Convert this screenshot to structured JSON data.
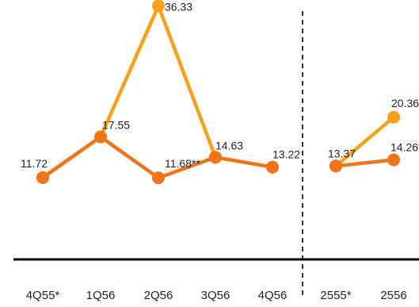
{
  "chart_data": {
    "type": "line",
    "categories": [
      "4Q55*",
      "1Q56",
      "2Q56",
      "3Q56",
      "4Q56",
      "2555*",
      "2556"
    ],
    "groups": [
      {
        "categories": [
          "4Q55*",
          "1Q56",
          "2Q56",
          "3Q56",
          "4Q56"
        ],
        "series": [
          {
            "key": "a",
            "values": [
              11.72,
              17.55,
              36.33,
              14.63,
              13.22
            ],
            "labels": [
              "11.72",
              "17.55",
              "36.33",
              "14.63",
              "13.22"
            ],
            "color": "#f7a11a"
          },
          {
            "key": "b",
            "values": [
              11.72,
              17.55,
              11.68,
              14.63,
              13.22
            ],
            "labels": [
              null,
              null,
              "11.68**",
              null,
              null
            ],
            "color": "#f07419"
          }
        ]
      },
      {
        "categories": [
          "2555*",
          "2556"
        ],
        "series": [
          {
            "key": "a",
            "values": [
              13.37,
              20.36
            ],
            "labels": [
              null,
              "20.36"
            ],
            "color": "#f7a11a"
          },
          {
            "key": "b",
            "values": [
              13.37,
              14.26
            ],
            "labels": [
              "13.37",
              "14.26**"
            ],
            "color": "#f07419"
          }
        ]
      }
    ],
    "ylim": [
      0,
      38
    ],
    "grid": false,
    "separator": "dashed vertical line between 4Q56 and 2555*",
    "title": "",
    "xlabel": "",
    "ylabel": ""
  }
}
